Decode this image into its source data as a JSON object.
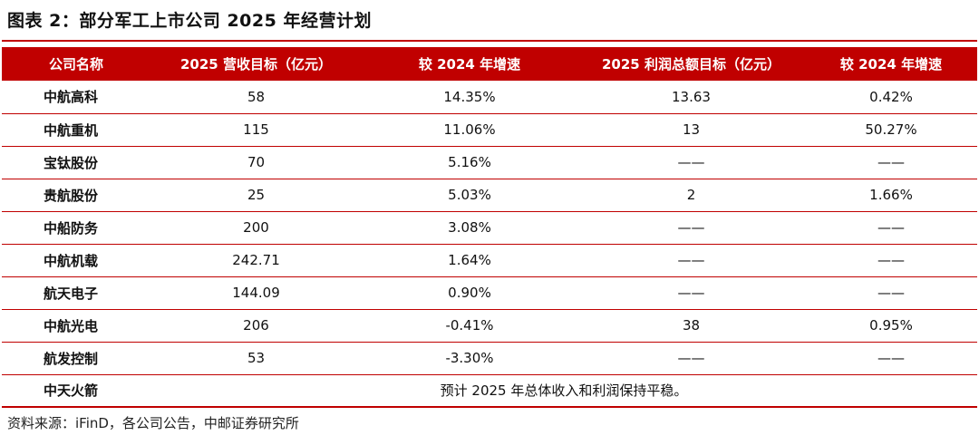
{
  "title": "图表 2：部分军工上市公司 2025 年经营计划",
  "headers": [
    "公司名称",
    "2025 营收目标（亿元）",
    "较 2024 年增速",
    "2025 利润总额目标（亿元）",
    "较 2024 年增速"
  ],
  "rows": [
    {
      "name": "中航高科",
      "revenue": "58",
      "rev_growth": "14.35%",
      "profit": "13.63",
      "profit_growth": "0.42%"
    },
    {
      "name": "中航重机",
      "revenue": "115",
      "rev_growth": "11.06%",
      "profit": "13",
      "profit_growth": "50.27%"
    },
    {
      "name": "宝钛股份",
      "revenue": "70",
      "rev_growth": "5.16%",
      "profit": "——",
      "profit_growth": "——"
    },
    {
      "name": "贵航股份",
      "revenue": "25",
      "rev_growth": "5.03%",
      "profit": "2",
      "profit_growth": "1.66%"
    },
    {
      "name": "中船防务",
      "revenue": "200",
      "rev_growth": "3.08%",
      "profit": "——",
      "profit_growth": "——"
    },
    {
      "name": "中航机载",
      "revenue": "242.71",
      "rev_growth": "1.64%",
      "profit": "——",
      "profit_growth": "——"
    },
    {
      "name": "航天电子",
      "revenue": "144.09",
      "rev_growth": "0.90%",
      "profit": "——",
      "profit_growth": "——"
    },
    {
      "name": "中航光电",
      "revenue": "206",
      "rev_growth": "-0.41%",
      "profit": "38",
      "profit_growth": "0.95%"
    },
    {
      "name": "航发控制",
      "revenue": "53",
      "rev_growth": "-3.30%",
      "profit": "——",
      "profit_growth": "——"
    }
  ],
  "last_row": {
    "name": "中天火箭",
    "note": "预计 2025 年总体收入和利润保持平稳。"
  },
  "source": "资料来源：iFinD，各公司公告，中邮证券研究所",
  "colors": {
    "accent": "#c00000",
    "header_text": "#ffffff"
  }
}
